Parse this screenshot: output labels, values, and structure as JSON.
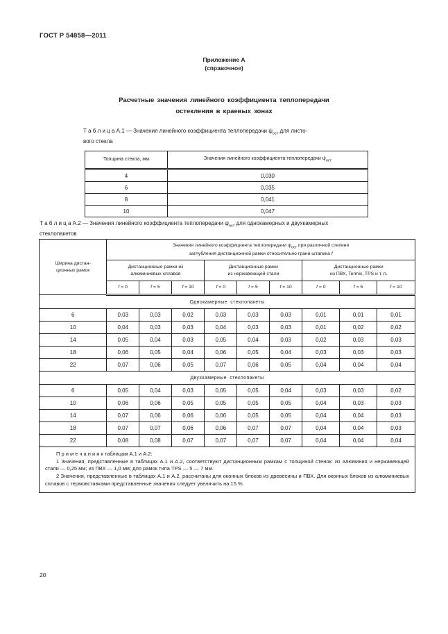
{
  "header": {
    "doc_code": "ГОСТ Р 54858—2011"
  },
  "annex": {
    "title": "Приложение А",
    "subtitle": "(справочное)"
  },
  "title": {
    "line1": "Расчетные значения линейного коэффициента теплопередачи",
    "line2": "остекления в краевых зонах"
  },
  "table_a1": {
    "caption": {
      "pre": "Т а б л и ц а  А.1 — Значения линейного коэффициента теплопередачи ",
      "psi": "ψ",
      "psi_sub": "ост",
      "post": " для листо-",
      "line2": "вого стекла"
    },
    "col1_header": "Толщина стекла, мм",
    "col2_header": {
      "pre": "Значения линейного коэффициента теплопередачи ",
      "psi": "ψ",
      "psi_sub": "ост"
    },
    "rows": [
      [
        "4",
        "0,030"
      ],
      [
        "6",
        "0,035"
      ],
      [
        "8",
        "0,041"
      ],
      [
        "10",
        "0,047"
      ]
    ]
  },
  "table_a2": {
    "caption": {
      "pre": "Т а б л и ц а  А.2 — Значения линейного коэффициента теплопередачи ",
      "psi": "ψ",
      "psi_sub": "ост",
      "post": " для однокамерных и двухкамерных",
      "line2": "стеклопакетов"
    },
    "col0_header_line1": "Ширина дистан-",
    "col0_header_line2": "ционных рамок",
    "span_header": {
      "l1_pre": "Значения линейного коэффициента теплопередачи ",
      "psi": "ψ",
      "psi_sub": "ост",
      "l1_post": " при различной степени",
      "l2_pre": "заглубления дистанционной рамки относительно грани штапика ",
      "f": "f"
    },
    "groups": [
      {
        "line1": "Дистанционные рамки из",
        "line2": "алюминиевых сплавов"
      },
      {
        "line1": "Дистанционные рамки",
        "line2": "из нержавеющей стали"
      },
      {
        "line1": "Дистанционные рамки",
        "line2": "из ПВХ, Termix, TPS и т. п."
      }
    ],
    "f_symbol": "f",
    "f_values": [
      " = 0",
      " = 5",
      " = 10"
    ],
    "sections": [
      {
        "title": "Однокамерные стеклопакеты",
        "rows": [
          [
            "6",
            "0,03",
            "0,03",
            "0,02",
            "0,03",
            "0,03",
            "0,03",
            "0,01",
            "0,01",
            "0,01"
          ],
          [
            "10",
            "0,04",
            "0,03",
            "0,03",
            "0,04",
            "0,03",
            "0,03",
            "0,01",
            "0,02",
            "0,02"
          ],
          [
            "14",
            "0,05",
            "0,04",
            "0,03",
            "0,05",
            "0,04",
            "0,03",
            "0,02",
            "0,03",
            "0,03"
          ],
          [
            "18",
            "0,06",
            "0,05",
            "0,04",
            "0,06",
            "0,05",
            "0,04",
            "0,03",
            "0,03",
            "0,03"
          ],
          [
            "22",
            "0,07",
            "0,06",
            "0,05",
            "0,07",
            "0,06",
            "0,05",
            "0,04",
            "0,04",
            "0,04"
          ]
        ]
      },
      {
        "title": "Двухкамерные стеклопакеты",
        "rows": [
          [
            "6",
            "0,05",
            "0,04",
            "0,03",
            "0,05",
            "0,05",
            "0,04",
            "0,03",
            "0,03",
            "0,02"
          ],
          [
            "10",
            "0,06",
            "0,06",
            "0,05",
            "0,05",
            "0,05",
            "0,05",
            "0,04",
            "0,03",
            "0,03"
          ],
          [
            "14",
            "0,07",
            "0,06",
            "0,06",
            "0,06",
            "0,05",
            "0,05",
            "0,04",
            "0,04",
            "0,03"
          ],
          [
            "18",
            "0,07",
            "0,07",
            "0,06",
            "0,06",
            "0,07",
            "0,07",
            "0,04",
            "0,04",
            "0,03"
          ],
          [
            "22",
            "0,08",
            "0,08",
            "0,07",
            "0,07",
            "0,07",
            "0,07",
            "0,04",
            "0,04",
            "0,04"
          ]
        ]
      }
    ],
    "notes": {
      "heading": "П р и м е ч а н и я  к таблицам А.1 и А.2:",
      "note1": "1 Значения, представленные в таблицах А.1 и А.2, соответствуют дистанционным рамкам с толщиной стенок: из алюминия и нержавеющей стали — 0,25 мм; из ПВХ — 1,0 мм; для рамок типа TPS — 5 — 7 мм.",
      "note2": "2 Значения, представленные в таблицах А.1 и А.2, рассчитаны для оконных блоков из древесины и ПВХ. Для оконных блоков из алюминиевых сплавов с термовставками представленные значения следует увеличить на 15 %."
    }
  },
  "footer": {
    "page_number": "20"
  }
}
